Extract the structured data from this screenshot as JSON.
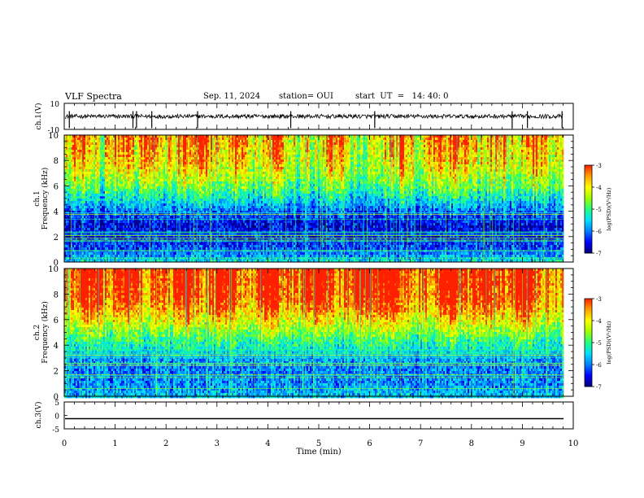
{
  "header": {
    "title": "VLF Spectra",
    "date": "Sep. 11, 2024",
    "station": "station= OUI",
    "start": "start  UT  =   14: 40: 0"
  },
  "chart_data": [
    {
      "type": "line",
      "panel": "ch1-waveform",
      "ylabel": "ch.1(V)",
      "ylim": [
        -10,
        10
      ],
      "yticks": [
        "10",
        "-10"
      ],
      "xlim": [
        0,
        10
      ],
      "baseline": 0,
      "spike_times_min": [
        0.1,
        1.35,
        1.42,
        1.72,
        2.62,
        4.45,
        6.1,
        8.8,
        9.1,
        9.78
      ]
    },
    {
      "type": "heatmap",
      "panel": "ch1-spectrogram",
      "ylabel_line1": "ch.1",
      "ylabel_line2": "Frequency (kHz)",
      "ylim": [
        0,
        10
      ],
      "yticks": [
        "0",
        "2",
        "4",
        "6",
        "8",
        "10"
      ],
      "xlim": [
        0,
        9.85
      ],
      "colorbar": {
        "label": "log(PSD)(V²/Hz)",
        "range": [
          -7,
          -3
        ],
        "ticks": [
          "-3",
          "-4",
          "-5",
          "-6",
          "-7"
        ]
      },
      "freq_profile_kHz": [
        0,
        1,
        2,
        3,
        3.5,
        4,
        5,
        6,
        7,
        8,
        10
      ],
      "log_psd_profile": [
        -5.3,
        -6.2,
        -6.4,
        -6.6,
        -6.4,
        -6.2,
        -5.6,
        -5.0,
        -4.6,
        -4.3,
        -4.1
      ],
      "activity_bursts_min": [
        0.3,
        1.1,
        1.6,
        2.3,
        2.7,
        3.4,
        4.1,
        5.3,
        6.6,
        7.3,
        7.7,
        8.5,
        9.2
      ]
    },
    {
      "type": "heatmap",
      "panel": "ch2-spectrogram",
      "ylabel_line1": "ch.2",
      "ylabel_line2": "Frequency (kHz)",
      "ylim": [
        0,
        10
      ],
      "yticks": [
        "0",
        "2",
        "4",
        "6",
        "8",
        "10"
      ],
      "xlim": [
        0,
        9.85
      ],
      "colorbar": {
        "label": "log(PSD)(V²/Hz)",
        "range": [
          -7,
          -3
        ],
        "ticks": [
          "-3",
          "-4",
          "-5",
          "-6",
          "-7"
        ]
      },
      "freq_profile_kHz": [
        0,
        1,
        2,
        3,
        4,
        5,
        6,
        7,
        8,
        10
      ],
      "log_psd_profile": [
        -5.6,
        -5.9,
        -6.0,
        -5.8,
        -5.3,
        -4.8,
        -4.2,
        -3.7,
        -3.4,
        -3.3
      ],
      "activity_bursts_min": [
        0.4,
        1.2,
        2.4,
        3.1,
        4.0,
        4.9,
        5.8,
        6.4,
        7.6,
        8.3,
        9.0
      ]
    },
    {
      "type": "line",
      "panel": "ch3-waveform",
      "ylabel": "ch.3(V)",
      "ylim": [
        -5,
        5
      ],
      "yticks": [
        "5",
        "0",
        "-5"
      ],
      "xlim": [
        0,
        9.85
      ],
      "value": -1.2,
      "xlabel": "Time  (min)",
      "xticks": [
        "0",
        "1",
        "2",
        "3",
        "4",
        "5",
        "6",
        "7",
        "8",
        "9",
        "10"
      ]
    }
  ],
  "colors": {
    "scale": [
      "#00007a",
      "#0000ff",
      "#0080ff",
      "#00e0ff",
      "#20ff80",
      "#a0ff00",
      "#ffff00",
      "#ffa000",
      "#ff2000"
    ],
    "axis": "#000000",
    "trace": "#000000"
  }
}
